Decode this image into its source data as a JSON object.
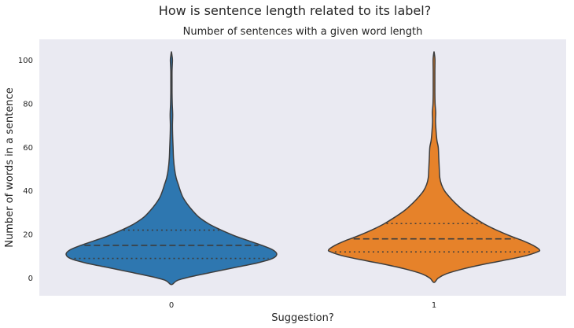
{
  "chart_data": {
    "type": "violin",
    "suptitle": "How is sentence length related to its label?",
    "title": "Number of sentences with a given word length",
    "xlabel": "Suggestion?",
    "ylabel": "Number of words in a sentence",
    "categories": [
      "0",
      "1"
    ],
    "ylim": [
      -8,
      108
    ],
    "yticks": [
      0,
      20,
      40,
      60,
      80,
      100
    ],
    "grid": false,
    "background": "#eaeaf2",
    "colors": [
      "#2e77b0",
      "#e6822a"
    ],
    "outline_color": "#3d3d3d",
    "violins": [
      {
        "category": "0",
        "q1": 9,
        "median": 15,
        "q3": 22,
        "min": -3,
        "max": 104,
        "density": [
          [
            -3,
            0.0
          ],
          [
            -1,
            0.06
          ],
          [
            1,
            0.22
          ],
          [
            3,
            0.42
          ],
          [
            5,
            0.62
          ],
          [
            7,
            0.82
          ],
          [
            9,
            0.96
          ],
          [
            11,
            1.0
          ],
          [
            13,
            0.96
          ],
          [
            15,
            0.86
          ],
          [
            17,
            0.74
          ],
          [
            19,
            0.62
          ],
          [
            21,
            0.52
          ],
          [
            23,
            0.43
          ],
          [
            25,
            0.35
          ],
          [
            28,
            0.26
          ],
          [
            31,
            0.2
          ],
          [
            34,
            0.15
          ],
          [
            37,
            0.11
          ],
          [
            40,
            0.085
          ],
          [
            43,
            0.065
          ],
          [
            46,
            0.045
          ],
          [
            50,
            0.03
          ],
          [
            55,
            0.02
          ],
          [
            60,
            0.016
          ],
          [
            65,
            0.012
          ],
          [
            70,
            0.01
          ],
          [
            75,
            0.012
          ],
          [
            80,
            0.008
          ],
          [
            85,
            0.006
          ],
          [
            90,
            0.006
          ],
          [
            95,
            0.006
          ],
          [
            100,
            0.01
          ],
          [
            102,
            0.006
          ],
          [
            104,
            0.0
          ]
        ]
      },
      {
        "category": "1",
        "q1": 12,
        "median": 18,
        "q3": 25,
        "min": -2,
        "max": 104,
        "density": [
          [
            -2,
            0.0
          ],
          [
            0,
            0.04
          ],
          [
            2,
            0.12
          ],
          [
            4,
            0.26
          ],
          [
            6,
            0.44
          ],
          [
            8,
            0.65
          ],
          [
            10,
            0.85
          ],
          [
            12,
            0.98
          ],
          [
            13,
            1.0
          ],
          [
            15,
            0.94
          ],
          [
            17,
            0.85
          ],
          [
            19,
            0.74
          ],
          [
            21,
            0.64
          ],
          [
            23,
            0.55
          ],
          [
            25,
            0.47
          ],
          [
            28,
            0.37
          ],
          [
            31,
            0.28
          ],
          [
            34,
            0.21
          ],
          [
            37,
            0.15
          ],
          [
            40,
            0.1
          ],
          [
            43,
            0.07
          ],
          [
            46,
            0.055
          ],
          [
            50,
            0.05
          ],
          [
            55,
            0.045
          ],
          [
            60,
            0.04
          ],
          [
            63,
            0.028
          ],
          [
            67,
            0.02
          ],
          [
            72,
            0.014
          ],
          [
            76,
            0.016
          ],
          [
            80,
            0.01
          ],
          [
            85,
            0.008
          ],
          [
            90,
            0.008
          ],
          [
            95,
            0.008
          ],
          [
            100,
            0.009
          ],
          [
            102,
            0.006
          ],
          [
            104,
            0.0
          ]
        ]
      }
    ]
  }
}
